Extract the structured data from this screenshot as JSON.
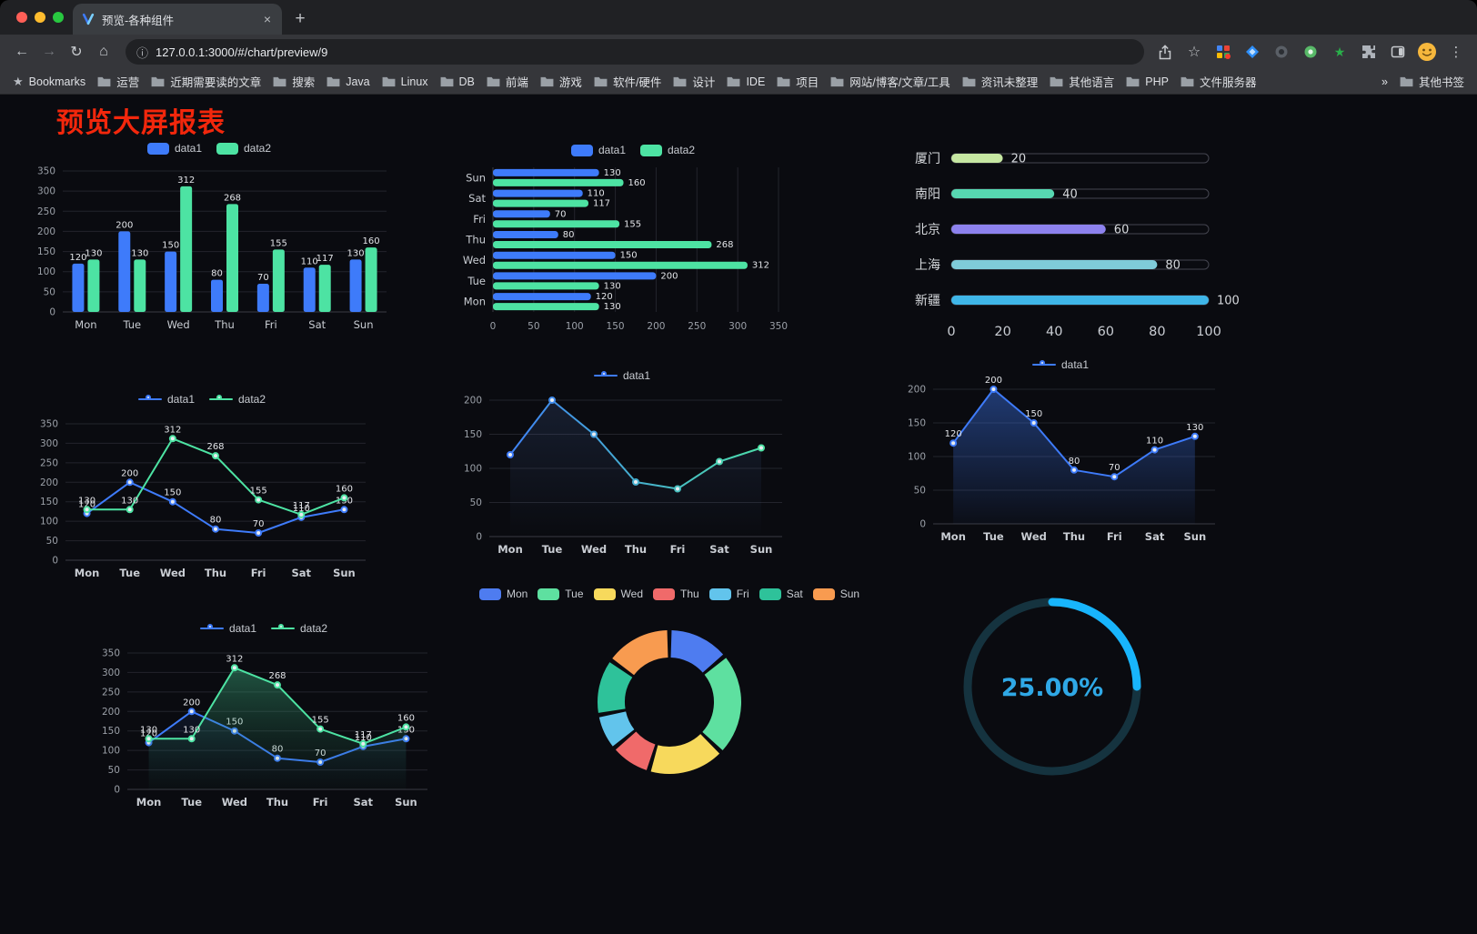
{
  "browser": {
    "tab_title": "预览-各种组件",
    "url": "127.0.0.1:3000/#/chart/preview/9",
    "bookmarks_label": "Bookmarks",
    "bookmarks": [
      "运营",
      "近期需要读的文章",
      "搜索",
      "Java",
      "Linux",
      "DB",
      "前端",
      "游戏",
      "软件/硬件",
      "设计",
      "IDE",
      "项目",
      "网站/博客/文章/工具",
      "资讯未整理",
      "其他语言",
      "PHP",
      "文件服务器"
    ],
    "bookmarks_overflow": "»",
    "other_bookmarks": "其他书签"
  },
  "icons": {
    "back": "←",
    "forward": "→",
    "reload": "↻",
    "home": "⌂",
    "info": "ⓘ",
    "star": "☆",
    "kebab": "⋮",
    "plus": "+",
    "close": "×"
  },
  "page": {
    "title": "预览大屏报表",
    "title_color": "#f2270c"
  },
  "colors": {
    "data1": "#3E7BFA",
    "data2": "#4DE3A3",
    "background": "#0a0b10"
  },
  "chart_data": [
    {
      "id": "bar-grouped",
      "type": "bar",
      "categories": [
        "Mon",
        "Tue",
        "Wed",
        "Thu",
        "Fri",
        "Sat",
        "Sun"
      ],
      "series": [
        {
          "name": "data1",
          "color": "#3E7BFA",
          "values": [
            120,
            200,
            150,
            80,
            70,
            110,
            130
          ]
        },
        {
          "name": "data2",
          "color": "#4DE3A3",
          "values": [
            130,
            130,
            312,
            268,
            155,
            117,
            160
          ]
        }
      ],
      "ylim": [
        0,
        350
      ],
      "ytick": 50,
      "legend_icon": "rect",
      "legend_position": "top"
    },
    {
      "id": "hbar-grouped",
      "type": "hbar",
      "categories": [
        "Mon",
        "Tue",
        "Wed",
        "Thu",
        "Fri",
        "Sat",
        "Sun"
      ],
      "series": [
        {
          "name": "data1",
          "color": "#3E7BFA",
          "values": [
            120,
            200,
            150,
            80,
            70,
            110,
            130
          ]
        },
        {
          "name": "data2",
          "color": "#4DE3A3",
          "values": [
            130,
            130,
            312,
            268,
            155,
            117,
            160
          ]
        }
      ],
      "xlim": [
        0,
        350
      ],
      "xtick": 50,
      "legend_icon": "rect",
      "legend_position": "top"
    },
    {
      "id": "progress-bars",
      "type": "progress",
      "rows": [
        {
          "label": "厦门",
          "value": 20,
          "color": "#C6E7A2"
        },
        {
          "label": "南阳",
          "value": 40,
          "color": "#57D8B2"
        },
        {
          "label": "北京",
          "value": 60,
          "color": "#8D82EE"
        },
        {
          "label": "上海",
          "value": 80,
          "color": "#7FCBD9"
        },
        {
          "label": "新疆",
          "value": 100,
          "color": "#3FB6E8"
        }
      ],
      "xlim": [
        0,
        100
      ],
      "xticks": [
        0,
        20,
        40,
        60,
        80,
        100
      ]
    },
    {
      "id": "line-dual",
      "type": "line",
      "categories": [
        "Mon",
        "Tue",
        "Wed",
        "Thu",
        "Fri",
        "Sat",
        "Sun"
      ],
      "series": [
        {
          "name": "data1",
          "color": "#3E7BFA",
          "values": [
            120,
            200,
            150,
            80,
            70,
            110,
            130
          ],
          "labels": true
        },
        {
          "name": "data2",
          "color": "#4DE3A3",
          "values": [
            130,
            130,
            312,
            268,
            155,
            117,
            160
          ],
          "labels": true
        }
      ],
      "ylim": [
        0,
        350
      ],
      "ytick": 50,
      "legend_icon": "line",
      "legend_position": "top"
    },
    {
      "id": "line-gradient",
      "type": "line",
      "categories": [
        "Mon",
        "Tue",
        "Wed",
        "Thu",
        "Fri",
        "Sat",
        "Sun"
      ],
      "series": [
        {
          "name": "data1",
          "color": "#3E7BFA",
          "color_end": "#4DE3A3",
          "gradient": true,
          "values": [
            120,
            200,
            150,
            80,
            70,
            110,
            130
          ],
          "area_from": "rgba(90,130,210,0.16)",
          "area_to": "rgba(90,130,210,0)"
        }
      ],
      "ylim": [
        0,
        200
      ],
      "ytick": 50,
      "legend_icon": "line",
      "legend_position": "top"
    },
    {
      "id": "area-single",
      "type": "line",
      "categories": [
        "Mon",
        "Tue",
        "Wed",
        "Thu",
        "Fri",
        "Sat",
        "Sun"
      ],
      "series": [
        {
          "name": "data1",
          "color": "#3E7BFA",
          "values": [
            120,
            200,
            150,
            80,
            70,
            110,
            130
          ],
          "labels": true,
          "area_from": "rgba(62,123,250,0.42)",
          "area_to": "rgba(62,123,250,0.03)"
        }
      ],
      "ylim": [
        0,
        200
      ],
      "ytick": 50,
      "legend_icon": "line",
      "legend_position": "top"
    },
    {
      "id": "line-area-dual",
      "type": "line",
      "categories": [
        "Mon",
        "Tue",
        "Wed",
        "Thu",
        "Fri",
        "Sat",
        "Sun"
      ],
      "series": [
        {
          "name": "data1",
          "color": "#3E7BFA",
          "values": [
            120,
            200,
            150,
            80,
            70,
            110,
            130
          ],
          "labels": true,
          "area_from": "rgba(62,123,250,0.16)",
          "area_to": "rgba(62,123,250,0)"
        },
        {
          "name": "data2",
          "color": "#4DE3A3",
          "values": [
            130,
            130,
            312,
            268,
            155,
            117,
            160
          ],
          "labels": true,
          "area_from": "rgba(77,227,163,0.40)",
          "area_to": "rgba(30,100,70,0.04)"
        }
      ],
      "ylim": [
        0,
        350
      ],
      "ytick": 50,
      "legend_icon": "line",
      "legend_position": "top"
    },
    {
      "id": "donut-week",
      "type": "pie",
      "categories": [
        "Mon",
        "Tue",
        "Wed",
        "Thu",
        "Fri",
        "Sat",
        "Sun"
      ],
      "values": [
        120,
        200,
        150,
        80,
        70,
        110,
        130
      ],
      "colors": [
        "#4E7CF0",
        "#5EE0A0",
        "#F7D95C",
        "#F06A6A",
        "#62C4EC",
        "#2EC29A",
        "#F89B50"
      ],
      "legend_position": "top",
      "inner_radius_ratio": 0.62
    },
    {
      "id": "gauge-percent",
      "type": "gauge",
      "value": 25,
      "label": "25.00%",
      "color": "#18B5FC",
      "track": "#15333F",
      "text_color": "#2FA8E6"
    }
  ]
}
